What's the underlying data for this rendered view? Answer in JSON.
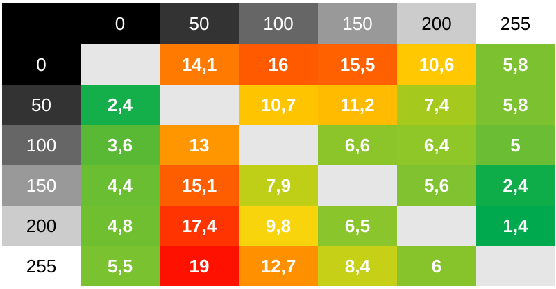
{
  "chart_data": {
    "type": "heatmap",
    "title": "",
    "xlabel": "",
    "ylabel": "",
    "x_labels": [
      "0",
      "50",
      "100",
      "150",
      "200",
      "255"
    ],
    "y_labels": [
      "0",
      "50",
      "100",
      "150",
      "200",
      "255"
    ],
    "header_colors": [
      "#000000",
      "#333333",
      "#666666",
      "#999999",
      "#cccccc",
      "#ffffff"
    ],
    "header_text_colors": [
      "#ffffff",
      "#ffffff",
      "#ffffff",
      "#ffffff",
      "#000000",
      "#000000"
    ],
    "diagonal_color": "#e6e6e6",
    "values": [
      [
        null,
        "14,1",
        "16",
        "15,5",
        "10,6",
        "5,8"
      ],
      [
        "2,4",
        null,
        "10,7",
        "11,2",
        "7,4",
        "5,8"
      ],
      [
        "3,6",
        "13",
        null,
        "6,6",
        "6,4",
        "5"
      ],
      [
        "4,4",
        "15,1",
        "7,9",
        null,
        "5,6",
        "2,4"
      ],
      [
        "4,8",
        "17,4",
        "9,8",
        "6,5",
        null,
        "1,4"
      ],
      [
        "5,5",
        "19",
        "12,7",
        "8,4",
        "6",
        null
      ]
    ],
    "cell_colors": [
      [
        "#e6e6e6",
        "#ff7a00",
        "#ff5a00",
        "#ff6100",
        "#ffc800",
        "#7cc130"
      ],
      [
        "#14ae4b",
        "#e6e6e6",
        "#ffc400",
        "#ffbb00",
        "#a6c91d",
        "#7cc130"
      ],
      [
        "#59b935",
        "#ff9600",
        "#e6e6e6",
        "#8bc52a",
        "#8fc628",
        "#6bbd33"
      ],
      [
        "#6abe32",
        "#ff5e00",
        "#bfcf18",
        "#e6e6e6",
        "#80c22f",
        "#0fac4a"
      ],
      [
        "#70bf31",
        "#ff3400",
        "#f7d40b",
        "#89c52b",
        "#e6e6e6",
        "#00a84e"
      ],
      [
        "#7ac230",
        "#ff1100",
        "#ff9100",
        "#c6d016",
        "#87c42c",
        "#e6e6e6"
      ]
    ]
  }
}
